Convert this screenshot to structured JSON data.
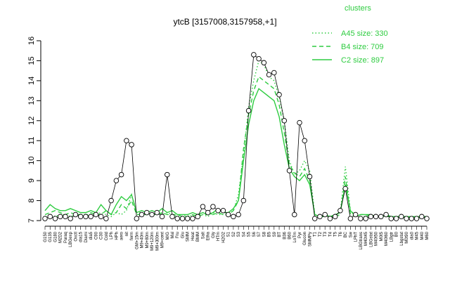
{
  "chart_data": {
    "type": "line",
    "title": "ytcB [3157008,3157958,+1]",
    "xlabel": "",
    "ylabel": "",
    "ylim": [
      7,
      16
    ],
    "yticks": [
      7,
      8,
      9,
      10,
      11,
      12,
      13,
      14,
      15,
      16
    ],
    "categories": [
      "G150",
      "G135",
      "G180",
      "M2D2",
      "Paraq",
      "LBGexp",
      "Oxctl",
      "dia15",
      "Diami",
      "dia5",
      "C90",
      "C30",
      "Cold",
      "LPh",
      "HPh",
      "aero",
      "nit",
      "ferm",
      "GM+15m",
      "M9+40m",
      "M9+80m",
      "M9+120m",
      "M9+300m",
      "M9+cent",
      "M/G",
      "Mal",
      "Fru",
      "Glu",
      "SMM",
      "Heat",
      "BMM",
      "Salt",
      "Etha",
      "Gly",
      "HTm",
      "H2O2",
      "S1",
      "S2",
      "S3",
      "S4",
      "S5",
      "S6",
      "S7",
      "S8",
      "B5",
      "S9",
      "BT",
      "B36",
      "B60",
      "LoTm",
      "Pyr",
      "Glucon",
      "SMMPy",
      "T1",
      "T2",
      "T3",
      "T4",
      "T5",
      "T6",
      "BC",
      "Sw",
      "LPhT",
      "LBGtrans",
      "M40t45",
      "LBGstat",
      "M40t50",
      "M0t5",
      "M40t60",
      "LBgtr",
      "B0",
      "Lbgstat",
      "M0t90",
      "dia0",
      "M45",
      "M40",
      "M60"
    ],
    "series": [
      {
        "name": "A45 size: 330",
        "style": "dotted",
        "values": [
          7.2,
          7.3,
          7.2,
          7.3,
          7.3,
          7.2,
          7.3,
          7.2,
          7.3,
          7.3,
          7.3,
          7.4,
          7.3,
          7.2,
          7.4,
          7.3,
          7.5,
          8.3,
          7.4,
          7.4,
          7.3,
          7.4,
          7.4,
          7.3,
          7.4,
          7.3,
          7.2,
          7.2,
          7.3,
          7.2,
          7.3,
          7.3,
          7.2,
          7.4,
          7.3,
          7.3,
          7.3,
          7.5,
          8.3,
          10.3,
          12.7,
          14.0,
          15.0,
          14.8,
          14.2,
          14.0,
          13.2,
          12.0,
          10.0,
          9.3,
          9.5,
          10.0,
          9.5,
          7.3,
          7.2,
          7.3,
          7.2,
          7.3,
          7.4,
          9.7,
          7.5,
          7.3,
          7.2,
          7.2,
          7.2,
          7.2,
          7.2,
          7.3,
          7.2,
          7.2,
          7.2,
          7.2,
          7.1,
          7.2,
          7.1,
          7.2
        ]
      },
      {
        "name": "B4 size: 709",
        "style": "dashed",
        "values": [
          7.3,
          7.4,
          7.5,
          7.4,
          7.3,
          7.4,
          7.3,
          7.3,
          7.2,
          7.4,
          7.3,
          7.3,
          7.5,
          7.3,
          7.4,
          7.8,
          7.6,
          8.0,
          7.3,
          7.3,
          7.3,
          7.3,
          7.3,
          7.4,
          7.3,
          7.3,
          7.3,
          7.2,
          7.2,
          7.3,
          7.2,
          7.3,
          7.3,
          7.3,
          7.4,
          7.3,
          7.3,
          7.5,
          8.0,
          10.6,
          12.3,
          13.5,
          14.2,
          14.0,
          13.8,
          13.6,
          12.8,
          11.4,
          9.8,
          9.4,
          9.2,
          9.6,
          9.0,
          7.3,
          7.2,
          7.2,
          7.2,
          7.2,
          7.3,
          9.2,
          7.3,
          7.2,
          7.3,
          7.3,
          7.2,
          7.2,
          7.2,
          7.2,
          7.2,
          7.2,
          7.2,
          7.1,
          7.2,
          7.1,
          7.2,
          7.1
        ]
      },
      {
        "name": "C2 size: 897",
        "style": "solid",
        "values": [
          7.5,
          7.8,
          7.6,
          7.5,
          7.5,
          7.6,
          7.5,
          7.4,
          7.4,
          7.5,
          7.4,
          7.8,
          7.5,
          7.3,
          7.8,
          8.2,
          8.0,
          8.3,
          7.4,
          7.5,
          7.4,
          7.5,
          7.4,
          7.6,
          7.4,
          7.5,
          7.3,
          7.3,
          7.3,
          7.4,
          7.3,
          7.4,
          7.3,
          7.4,
          7.6,
          7.4,
          7.4,
          7.6,
          8.0,
          10.0,
          11.8,
          13.0,
          13.6,
          13.4,
          13.2,
          13.0,
          12.2,
          10.8,
          9.6,
          9.2,
          9.0,
          9.3,
          8.8,
          7.3,
          7.2,
          7.3,
          7.2,
          7.3,
          7.4,
          8.8,
          7.5,
          7.2,
          7.3,
          7.3,
          7.3,
          7.2,
          7.2,
          7.3,
          7.2,
          7.2,
          7.2,
          7.2,
          7.2,
          7.2,
          7.2,
          7.2
        ]
      }
    ],
    "points": {
      "name": "ytcB",
      "values": [
        7.1,
        7.2,
        7.1,
        7.2,
        7.2,
        7.1,
        7.3,
        7.2,
        7.2,
        7.2,
        7.3,
        7.2,
        7.1,
        8.0,
        9.0,
        9.3,
        11.0,
        10.8,
        7.1,
        7.3,
        7.4,
        7.3,
        7.4,
        7.2,
        9.3,
        7.2,
        7.1,
        7.1,
        7.1,
        7.1,
        7.2,
        7.7,
        7.4,
        7.7,
        7.5,
        7.5,
        7.3,
        7.2,
        7.3,
        8.0,
        12.5,
        15.3,
        15.1,
        14.9,
        14.3,
        14.4,
        13.3,
        12.0,
        9.5,
        7.3,
        11.9,
        11.0,
        9.2,
        7.1,
        7.2,
        7.3,
        7.1,
        7.2,
        7.5,
        8.6,
        7.1,
        7.3,
        7.1,
        7.1,
        7.2,
        7.2,
        7.2,
        7.3,
        7.1,
        7.1,
        7.2,
        7.1,
        7.1,
        7.1,
        7.2,
        7.1
      ]
    },
    "legend": {
      "title": "clusters",
      "placement": "top-right",
      "color": "#2ecc40"
    },
    "line_color": "#2ecc40",
    "points_color": "#000000",
    "grid": false
  }
}
